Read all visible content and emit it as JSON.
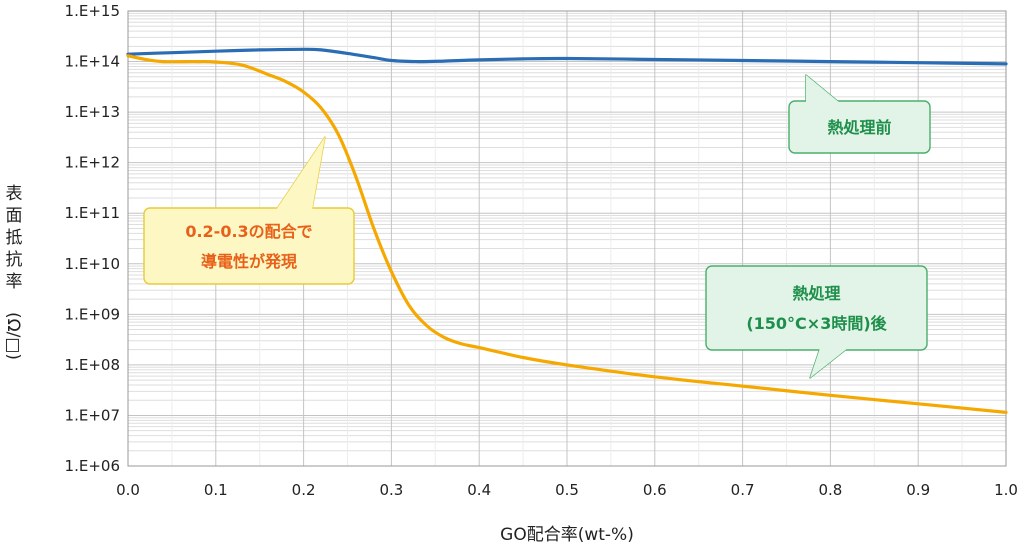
{
  "chart_data": {
    "type": "line",
    "xlabel": "GO配合率(wt-%)",
    "ylabel": "表面抵抗率(Ω/□)",
    "xlim": [
      0.0,
      1.0
    ],
    "ylim": [
      1000000.0,
      1000000000000000.0
    ],
    "yscale": "log",
    "x_ticks": [
      "0.0",
      "0.1",
      "0.2",
      "0.3",
      "0.4",
      "0.5",
      "0.6",
      "0.7",
      "0.8",
      "0.9",
      "1.0"
    ],
    "y_ticks": [
      "1.E+06",
      "1.E+07",
      "1.E+08",
      "1.E+09",
      "1.E+10",
      "1.E+11",
      "1.E+12",
      "1.E+13",
      "1.E+14",
      "1.E+15"
    ],
    "grid": true,
    "series": [
      {
        "color": "#2a6db5",
        "x": [
          0.0,
          0.05,
          0.1,
          0.15,
          0.2,
          0.22,
          0.25,
          0.28,
          0.3,
          0.33,
          0.36,
          0.4,
          0.45,
          0.5,
          0.6,
          0.7,
          0.8,
          0.9,
          1.0
        ],
        "y": [
          140000000000000.0,
          150000000000000.0,
          160000000000000.0,
          170000000000000.0,
          175000000000000.0,
          170000000000000.0,
          145000000000000.0,
          120000000000000.0,
          105000000000000.0,
          100000000000000.0,
          102000000000000.0,
          108000000000000.0,
          113000000000000.0,
          115000000000000.0,
          110000000000000.0,
          105000000000000.0,
          100000000000000.0,
          95000000000000.0,
          90000000000000.0
        ]
      },
      {
        "color": "#f5a800",
        "x": [
          0.0,
          0.02,
          0.04,
          0.08,
          0.1,
          0.13,
          0.16,
          0.18,
          0.2,
          0.22,
          0.24,
          0.26,
          0.28,
          0.3,
          0.32,
          0.34,
          0.36,
          0.38,
          0.4,
          0.45,
          0.5,
          0.6,
          0.7,
          0.8,
          0.9,
          1.0
        ],
        "y": [
          130000000000000.0,
          110000000000000.0,
          100000000000000.0,
          100000000000000.0,
          98000000000000.0,
          85000000000000.0,
          55000000000000.0,
          40000000000000.0,
          25000000000000.0,
          12000000000000.0,
          3500000000000.0,
          500000000000.0,
          50000000000.0,
          7000000000.0,
          1500000000.0,
          600000000.0,
          350000000.0,
          260000000.0,
          220000000.0,
          140000000.0,
          100000000.0,
          58000000.0,
          38000000.0,
          25000000.0,
          17000000.0,
          11500000.0
        ]
      }
    ],
    "annotations": [
      {
        "key": "before",
        "lines": [
          "熱処理前"
        ]
      },
      {
        "key": "after",
        "lines": [
          "熱処理",
          "(150°C×3時間)後"
        ]
      },
      {
        "key": "onset",
        "lines": [
          "0.2-0.3の配合で",
          "導電性が発現"
        ]
      }
    ]
  },
  "colors": {
    "blue_line": "#2a6db5",
    "orange_line": "#f5a800",
    "green_box_fill": "#e2f4e8",
    "green_box_stroke": "#49ae6b",
    "green_text": "#1e8f4a",
    "yellow_box_fill": "#fdf7c3",
    "yellow_box_stroke": "#e7cc3a",
    "orange_text": "#e8611a"
  }
}
